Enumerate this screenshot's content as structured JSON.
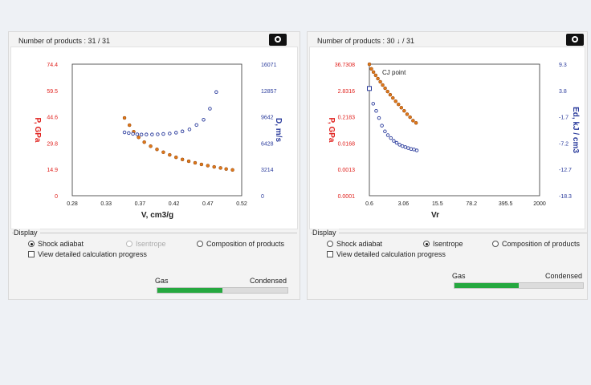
{
  "panels": [
    {
      "header": "Number of products : 31 / 31",
      "y1_label": "P, GPa",
      "y2_label": "D, m/s",
      "x_label": "V, cm3/g",
      "display": {
        "legend": "Display",
        "options": [
          "Shock adiabat",
          "Isentrope",
          "Composition of products"
        ],
        "selected": "Shock adiabat",
        "disabled": "Isentrope",
        "checkbox": "View detailed calculation progress"
      },
      "gas_label": "Gas",
      "condensed_label": "Condensed",
      "gas_fraction": 0.5
    },
    {
      "header": "Number of products : 30 ↓ / 31",
      "y1_label": "P, GPa",
      "y2_label": "Ed, kJ / cm3",
      "x_label": "Vr",
      "annotation": "CJ point",
      "display": {
        "legend": "Display",
        "options": [
          "Shock adiabat",
          "Isentrope",
          "Composition of products"
        ],
        "selected": "Isentrope",
        "checkbox": "View detailed calculation progress"
      },
      "gas_label": "Gas",
      "condensed_label": "Condensed",
      "gas_fraction": 0.5
    }
  ],
  "colors": {
    "p_axis": "#e0201c",
    "second_axis": "#2a3b9c",
    "p_marker": "#e07a1a",
    "second_marker": "#2a3b9c",
    "progress": "#25a83f"
  },
  "chart_data": [
    {
      "type": "scatter",
      "xlabel": "V, cm3/g",
      "ylabel": "P, GPa",
      "y2label": "D, m/s",
      "x_ticks": [
        "0.28",
        "0.33",
        "0.37",
        "0.42",
        "0.47",
        "0.52"
      ],
      "y1_ticks": [
        "74.4",
        "59.5",
        "44.6",
        "29.8",
        "14.9",
        "0"
      ],
      "y2_ticks": [
        "16071",
        "12857",
        "9642",
        "6428",
        "3214",
        "0"
      ],
      "xlim": [
        0.28,
        0.52
      ],
      "y1lim": [
        0,
        74.4
      ],
      "y2lim": [
        0,
        16071
      ],
      "grid": false,
      "series": [
        {
          "axis": "y1",
          "x": [
            0.354,
            0.361,
            0.367,
            0.374,
            0.382,
            0.391,
            0.4,
            0.409,
            0.418,
            0.427,
            0.436,
            0.445,
            0.454,
            0.463,
            0.472,
            0.481,
            0.49,
            0.498,
            0.507
          ],
          "values": [
            44.0,
            39.9,
            36.2,
            33.0,
            30.3,
            28.0,
            26.2,
            24.6,
            23.1,
            21.7,
            20.5,
            19.5,
            18.6,
            17.7,
            17.0,
            16.3,
            15.7,
            15.1,
            14.6
          ]
        },
        {
          "axis": "y2",
          "x": [
            0.354,
            0.36,
            0.366,
            0.372,
            0.378,
            0.385,
            0.393,
            0.401,
            0.409,
            0.418,
            0.427,
            0.436,
            0.446,
            0.456,
            0.466,
            0.475,
            0.484
          ],
          "values": [
            7740,
            7650,
            7560,
            7500,
            7470,
            7480,
            7480,
            7500,
            7540,
            7600,
            7700,
            7860,
            8100,
            8640,
            9280,
            10630,
            12660
          ]
        }
      ]
    },
    {
      "type": "scatter",
      "xlabel": "Vr",
      "ylabel": "P, GPa",
      "y2label": "Ed, kJ / cm3",
      "x_ticks": [
        "0.6",
        "3.06",
        "15.5",
        "78.2",
        "395.5",
        "2000"
      ],
      "y1_ticks": [
        "36.7308",
        "2.8316",
        "0.2183",
        "0.0168",
        "0.0013",
        "0.0001"
      ],
      "y2_ticks": [
        "9.3",
        "3.8",
        "-1.7",
        "-7.2",
        "-12.7",
        "-18.3"
      ],
      "xlim": [
        0.6,
        2000
      ],
      "xscale": "log",
      "y1lim": [
        0.0001,
        36.7308
      ],
      "y1scale": "log",
      "y2lim": [
        -18.3,
        9.3
      ],
      "grid": false,
      "annotation": "CJ point",
      "series": [
        {
          "axis": "y1",
          "x": [
            0.6,
            0.66,
            0.73,
            0.81,
            0.9,
            1.01,
            1.13,
            1.27,
            1.43,
            1.62,
            1.84,
            2.1,
            2.4,
            2.75,
            3.15,
            3.62,
            4.17,
            4.8,
            5.55
          ],
          "values": [
            36.5,
            23.3,
            17.0,
            12.4,
            9.0,
            6.6,
            4.81,
            3.51,
            2.56,
            1.87,
            1.36,
            0.99,
            0.73,
            0.53,
            0.39,
            0.28,
            0.21,
            0.15,
            0.12
          ]
        },
        {
          "axis": "y2",
          "x": [
            0.6,
            0.72,
            0.83,
            0.95,
            1.09,
            1.26,
            1.45,
            1.67,
            1.92,
            2.2,
            2.53,
            2.9,
            3.33,
            3.82,
            4.38,
            5.02,
            5.75
          ],
          "values": [
            4.2,
            1.0,
            -0.5,
            -2.0,
            -3.6,
            -4.8,
            -5.6,
            -6.2,
            -6.8,
            -7.2,
            -7.6,
            -7.9,
            -8.1,
            -8.3,
            -8.5,
            -8.6,
            -8.8
          ]
        }
      ]
    }
  ]
}
